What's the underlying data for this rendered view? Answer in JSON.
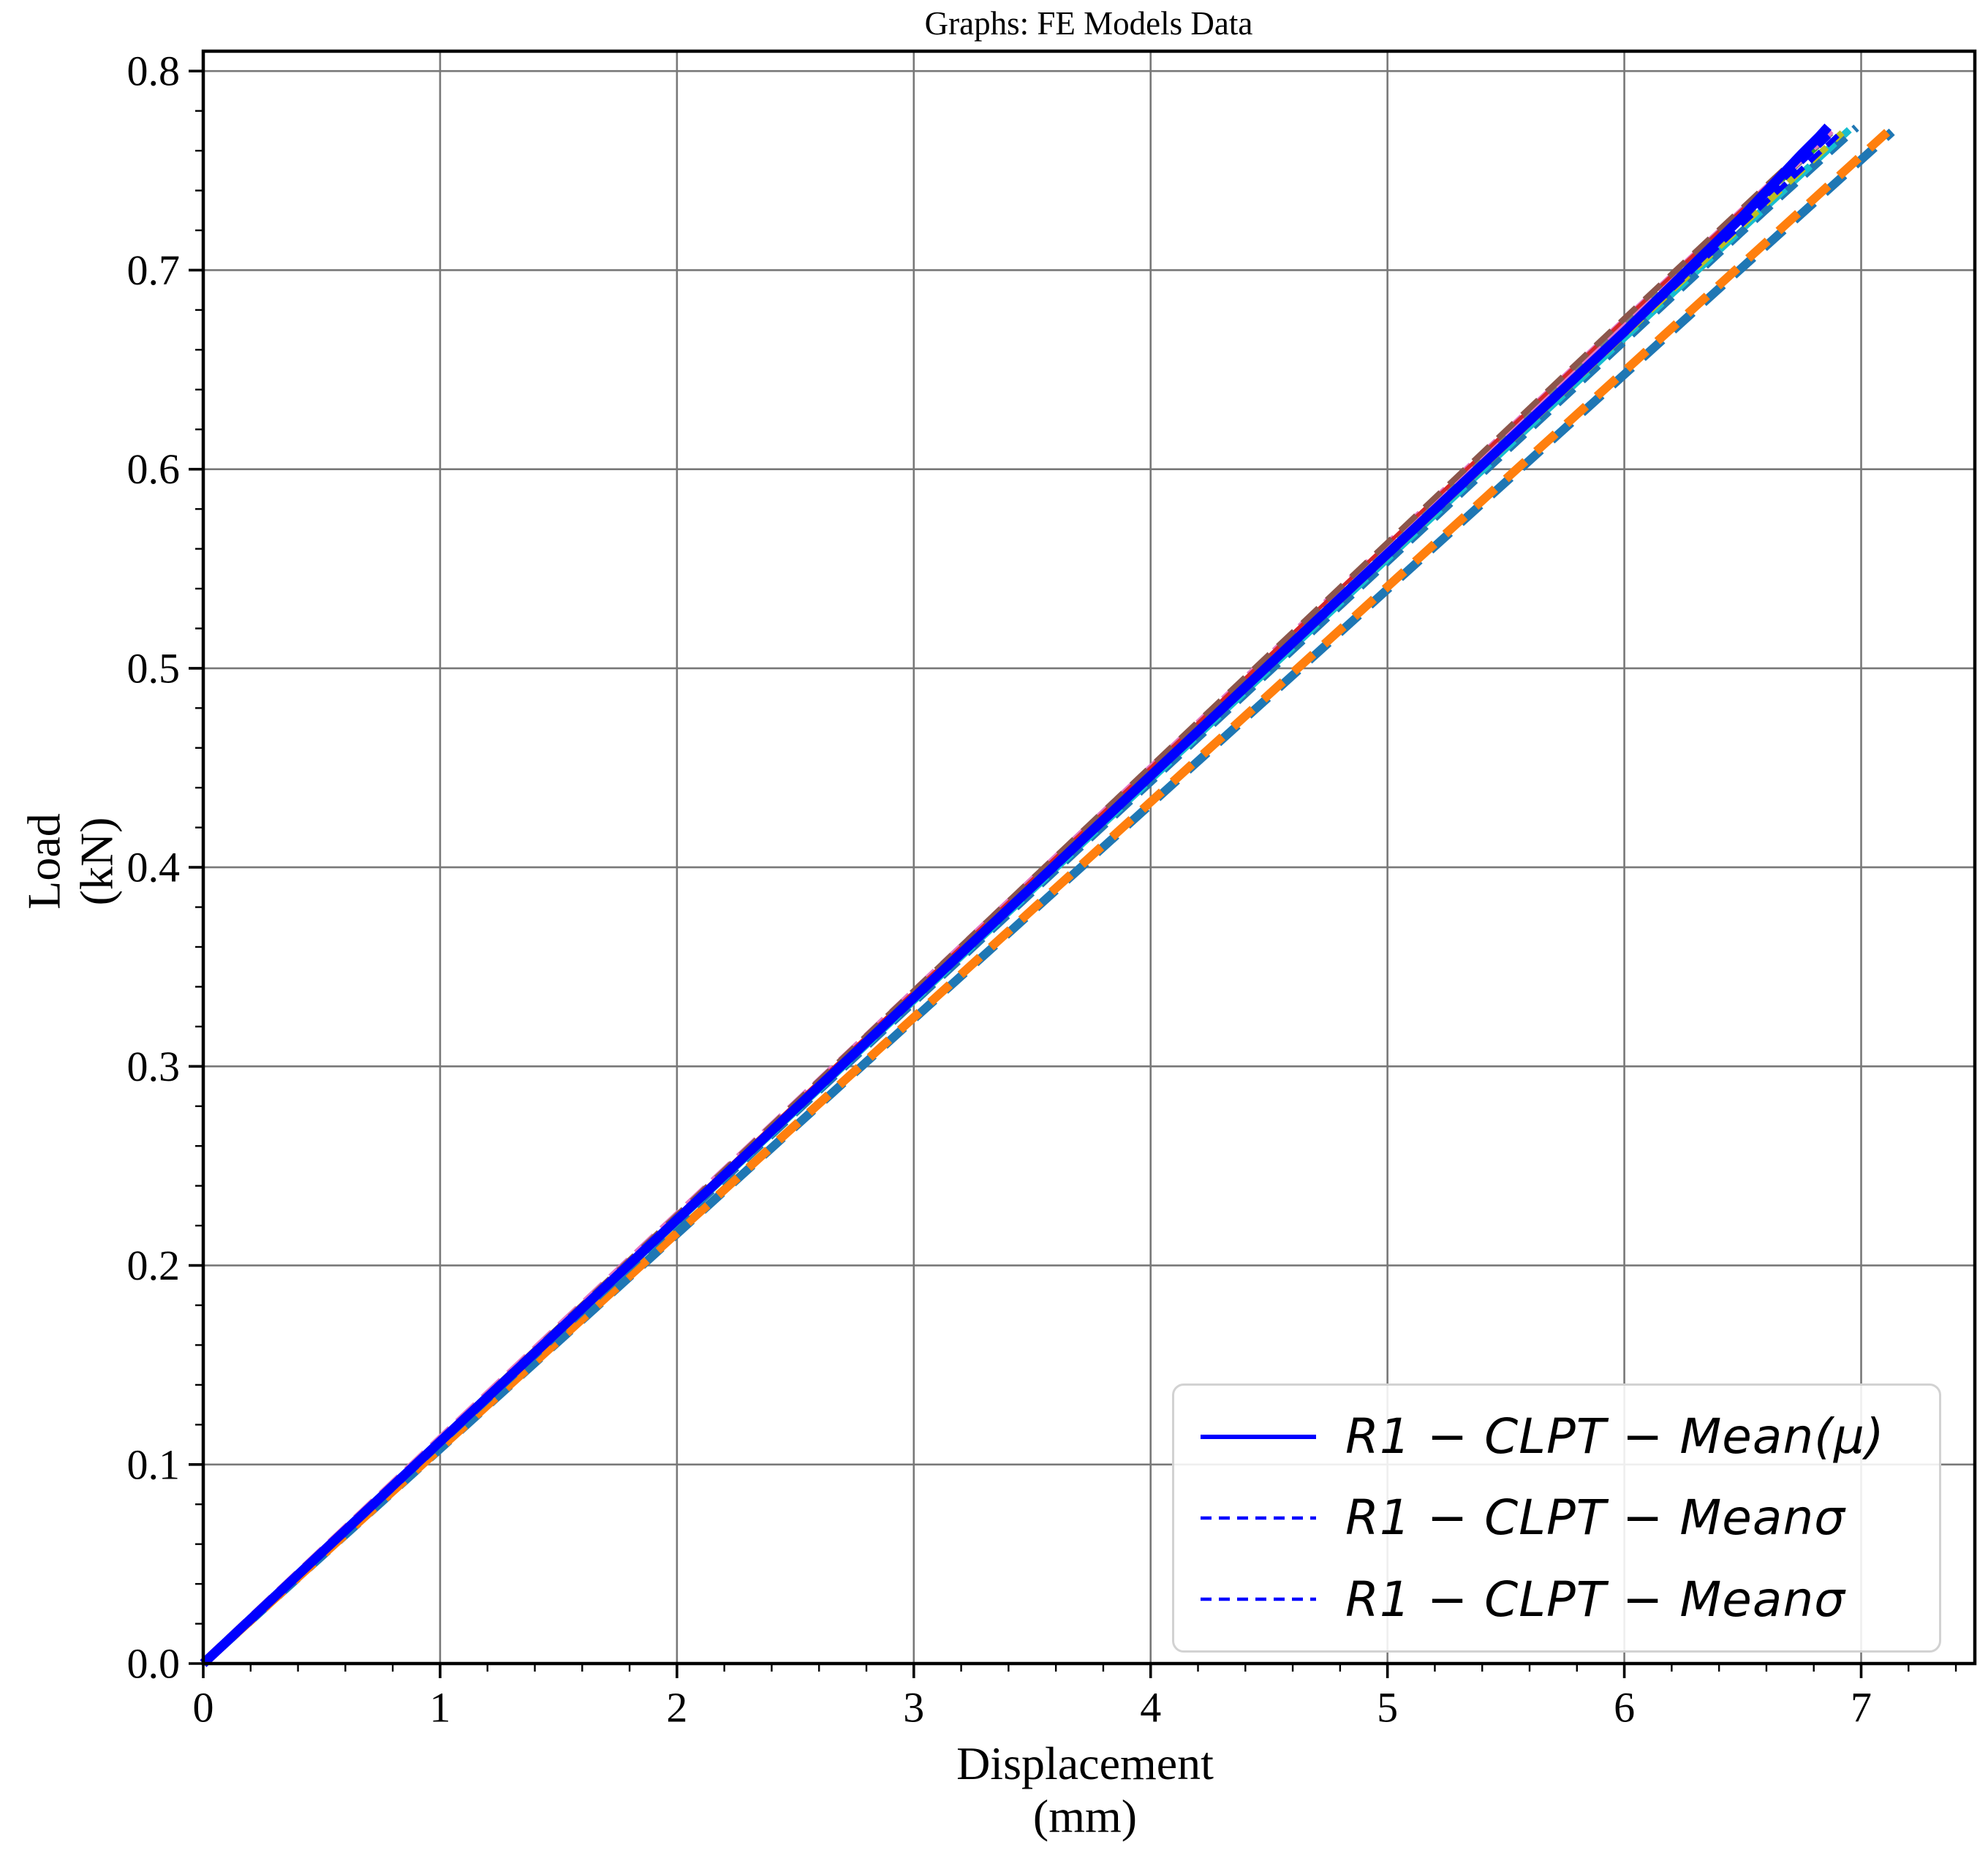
{
  "title": "Graphs: FE Models Data",
  "chart_data": {
    "type": "line",
    "title": "Graphs: FE Models Data",
    "xlabel_lines": [
      "Displacement",
      "(mm)"
    ],
    "ylabel_lines": [
      "Load",
      "(kN)"
    ],
    "xlim": [
      0,
      7.48
    ],
    "ylim": [
      0,
      0.81
    ],
    "grid": "major-both",
    "grid_color": "#787878",
    "x_ticks": {
      "values": [
        0,
        1,
        2,
        3,
        4,
        5,
        6,
        7
      ],
      "labels": [
        "0",
        "1",
        "2",
        "3",
        "4",
        "5",
        "6",
        "7"
      ],
      "minor_step": 0.2
    },
    "y_ticks": {
      "values": [
        0,
        0.1,
        0.2,
        0.3,
        0.4,
        0.5,
        0.6,
        0.7,
        0.8
      ],
      "labels": [
        "0.0",
        "0.1",
        "0.2",
        "0.3",
        "0.4",
        "0.5",
        "0.6",
        "0.7",
        "0.8"
      ],
      "minor_step": 0.02
    },
    "legend": {
      "position": "lower right",
      "entries": [
        {
          "label": "R1 − CLPT − Mean(μ)",
          "color": "#0000FF",
          "style": "solid"
        },
        {
          "label": "R1 − CLPT − Meanσ",
          "color": "#0000FF",
          "style": "dashed"
        },
        {
          "label": "R1 − CLPT − Meanσ",
          "color": "#0000FF",
          "style": "dashed"
        }
      ]
    },
    "series": [
      {
        "name": "FE-curve-steelblue-offset",
        "color": "#1F77B4",
        "width": 12,
        "dash": "36 20",
        "dash_offset": 30,
        "points": [
          [
            0,
            0
          ],
          [
            1,
            0.1079
          ],
          [
            2,
            0.2159
          ],
          [
            3,
            0.3238
          ],
          [
            4,
            0.4317
          ],
          [
            5,
            0.5397
          ],
          [
            6,
            0.6476
          ],
          [
            7.13,
            0.7695
          ]
        ]
      },
      {
        "name": "FE-curve-orange",
        "color": "#FF7F0E",
        "width": 12,
        "dash": "36 20",
        "dash_offset": 0,
        "points": [
          [
            0,
            0
          ],
          [
            1,
            0.1082
          ],
          [
            2,
            0.2164
          ],
          [
            3,
            0.3246
          ],
          [
            4,
            0.4328
          ],
          [
            5,
            0.541
          ],
          [
            6,
            0.6492
          ],
          [
            7.11,
            0.7693
          ]
        ]
      },
      {
        "name": "FE-curve-tabblue",
        "color": "#1F77B4",
        "width": 11,
        "dash": "30 16",
        "dash_offset": 0,
        "points": [
          [
            0,
            0
          ],
          [
            1,
            0.1107
          ],
          [
            2,
            0.2214
          ],
          [
            3,
            0.3322
          ],
          [
            4,
            0.4429
          ],
          [
            5,
            0.5536
          ],
          [
            6,
            0.6643
          ],
          [
            6.5,
            0.7197
          ],
          [
            6.98,
            0.7716
          ]
        ]
      },
      {
        "name": "FE-curve-cyan",
        "color": "#17BECF",
        "width": 10,
        "dash": "30 16",
        "dash_offset": 16,
        "points": [
          [
            0,
            0
          ],
          [
            1,
            0.111
          ],
          [
            2,
            0.222
          ],
          [
            3,
            0.333
          ],
          [
            4,
            0.444
          ],
          [
            5,
            0.555
          ],
          [
            6,
            0.666
          ],
          [
            6.95,
            0.7705
          ]
        ]
      },
      {
        "name": "FE-curve-olive",
        "color": "#BCBD22",
        "width": 9,
        "dash": "28 15",
        "dash_offset": 0,
        "points": [
          [
            0,
            0
          ],
          [
            1,
            0.1113
          ],
          [
            2,
            0.2226
          ],
          [
            3,
            0.3338
          ],
          [
            4,
            0.4451
          ],
          [
            5,
            0.5564
          ],
          [
            6,
            0.6677
          ],
          [
            6.92,
            0.769
          ]
        ]
      },
      {
        "name": "FE-curve-green",
        "color": "#2CA02C",
        "width": 6,
        "dash": "28 15",
        "dash_offset": 8,
        "points": [
          [
            0,
            0
          ],
          [
            1,
            0.1118
          ],
          [
            2,
            0.2237
          ],
          [
            3,
            0.3355
          ],
          [
            4,
            0.4473
          ],
          [
            5,
            0.5592
          ],
          [
            6,
            0.671
          ],
          [
            6.84,
            0.7645
          ]
        ]
      },
      {
        "name": "FE-curve-gray",
        "color": "#7F7F7F",
        "width": 9,
        "dash": "30 16",
        "dash_offset": 10,
        "points": [
          [
            0,
            0
          ],
          [
            1,
            0.112
          ],
          [
            2,
            0.224
          ],
          [
            3,
            0.336
          ],
          [
            4,
            0.448
          ],
          [
            5,
            0.56
          ],
          [
            6,
            0.672
          ],
          [
            6.89,
            0.771
          ]
        ]
      },
      {
        "name": "FE-curve-pink",
        "color": "#E377C2",
        "width": 13,
        "dash": "34 14",
        "dash_offset": 0,
        "points": [
          [
            0,
            0
          ],
          [
            1,
            0.1123
          ],
          [
            2,
            0.2246
          ],
          [
            3,
            0.3368
          ],
          [
            4,
            0.4491
          ],
          [
            5,
            0.5614
          ],
          [
            6,
            0.6737
          ],
          [
            6.87,
            0.7705
          ]
        ]
      },
      {
        "name": "FE-curve-red",
        "color": "#D62728",
        "width": 5,
        "dash": "30 16",
        "dash_offset": 22,
        "points": [
          [
            0,
            0
          ],
          [
            1,
            0.1125
          ],
          [
            2,
            0.225
          ],
          [
            3,
            0.3375
          ],
          [
            4,
            0.45
          ],
          [
            5,
            0.5625
          ],
          [
            6,
            0.675
          ],
          [
            6.86,
            0.7707
          ]
        ]
      },
      {
        "name": "FE-curve-brown",
        "color": "#8C564B",
        "width": 8,
        "dash": "30 16",
        "dash_offset": 0,
        "points": [
          [
            0,
            0
          ],
          [
            1,
            0.1126
          ],
          [
            2,
            0.2252
          ],
          [
            3,
            0.3379
          ],
          [
            4,
            0.4505
          ],
          [
            5,
            0.5631
          ],
          [
            6,
            0.6757
          ],
          [
            6.85,
            0.7702
          ]
        ]
      },
      {
        "name": "R1-CLPT-Mean-minus-sigma",
        "color": "#0000FF",
        "width": 7,
        "dash": "20 12",
        "dash_offset": 0,
        "points": [
          [
            0,
            0
          ],
          [
            1,
            0.1114
          ],
          [
            2,
            0.2227
          ],
          [
            3,
            0.3341
          ],
          [
            4,
            0.4455
          ],
          [
            5,
            0.5569
          ],
          [
            6,
            0.6682
          ],
          [
            6.92,
            0.7697
          ]
        ]
      },
      {
        "name": "R1-CLPT-Mean-plus-sigma",
        "color": "#0000FF",
        "width": 7,
        "dash": "20 12",
        "dash_offset": 9,
        "points": [
          [
            0,
            0
          ],
          [
            1,
            0.1116
          ],
          [
            2,
            0.2233
          ],
          [
            3,
            0.3349
          ],
          [
            4,
            0.4465
          ],
          [
            5,
            0.5582
          ],
          [
            6,
            0.6698
          ],
          [
            6.88,
            0.769
          ]
        ]
      },
      {
        "name": "R1-CLPT-Mean",
        "color": "#0000FF",
        "width": 13,
        "dash": "solid",
        "dash_offset": 0,
        "points": [
          [
            0,
            0
          ],
          [
            1,
            0.1115
          ],
          [
            2,
            0.223
          ],
          [
            3,
            0.3345
          ],
          [
            4,
            0.446
          ],
          [
            5,
            0.5575
          ],
          [
            6,
            0.669
          ],
          [
            6.5,
            0.727
          ],
          [
            6.75,
            0.7585
          ],
          [
            6.82,
            0.7668
          ],
          [
            6.86,
            0.772
          ]
        ]
      }
    ]
  }
}
